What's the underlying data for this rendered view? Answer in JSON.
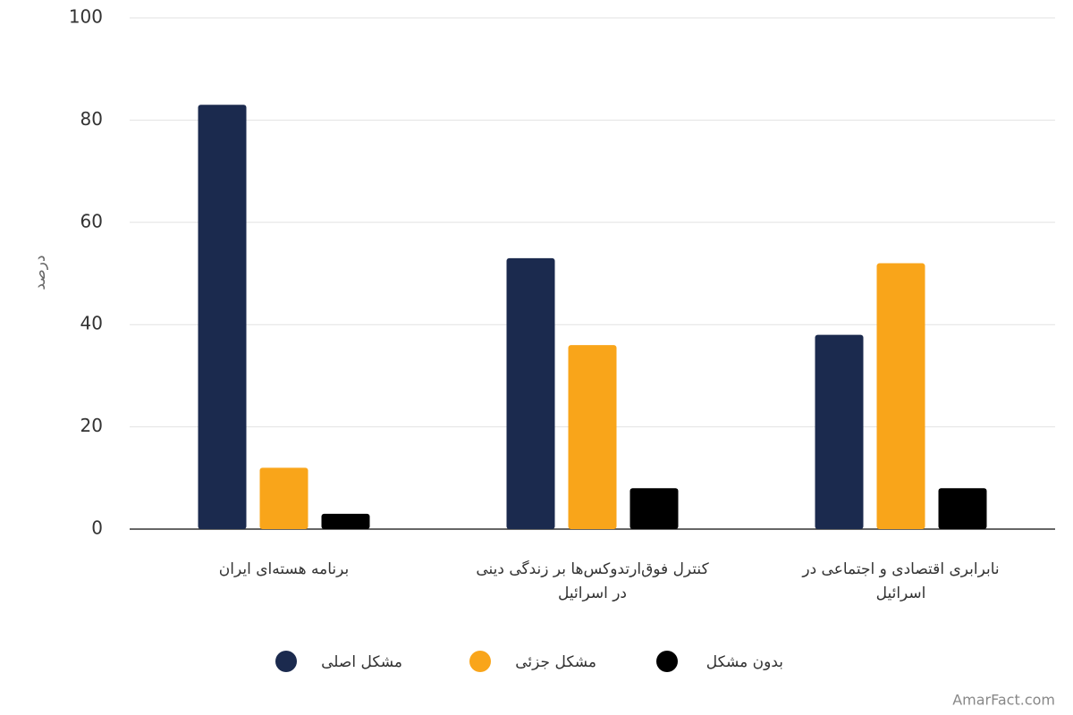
{
  "chart_data": {
    "type": "bar",
    "y_label": "درصد",
    "categories": [
      "برنامه هسته‌ای ایران",
      "کنترل فوق‌ارتدوکس‌ها بر زندگی دینی در اسرائیل",
      "نابرابری اقتصادی و اجتماعی در اسرائیل"
    ],
    "series": [
      {
        "name": "مشکل اصلی",
        "color": "#1b2a4e",
        "values": [
          83,
          53,
          38
        ]
      },
      {
        "name": "مشکل جزئی",
        "color": "#f9a51a",
        "values": [
          12,
          36,
          52
        ]
      },
      {
        "name": "بدون مشکل",
        "color": "#000000",
        "values": [
          3,
          8,
          8
        ]
      }
    ],
    "ylim": [
      0,
      100
    ],
    "yticks": [
      0,
      20,
      40,
      60,
      80,
      100
    ],
    "grid": true,
    "watermark": "AmarFact.com"
  }
}
